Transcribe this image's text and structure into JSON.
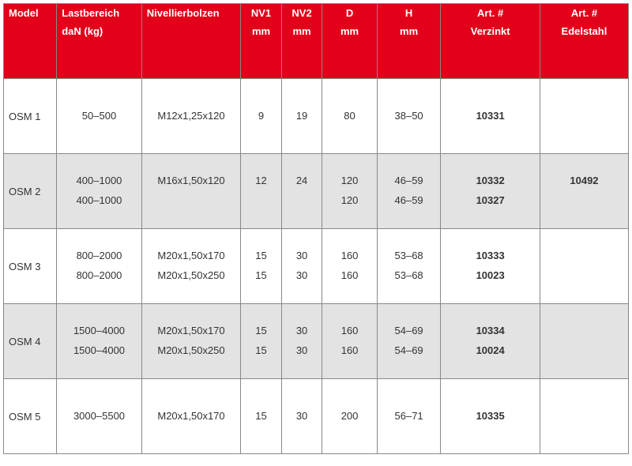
{
  "colors": {
    "header_bg": "#e2001a",
    "header_text": "#ffffff",
    "row_odd": "#ffffff",
    "row_even": "#e3e3e3",
    "border": "#888888",
    "text": "#333333"
  },
  "table": {
    "headers": {
      "model": {
        "line1": "Model",
        "line2": ""
      },
      "last": {
        "line1": "Lastbereich",
        "line2": "daN (kg)"
      },
      "niv": {
        "line1": "Nivellierbolzen",
        "line2": ""
      },
      "nv1": {
        "line1": "NV1",
        "line2": "mm"
      },
      "nv2": {
        "line1": "NV2",
        "line2": "mm"
      },
      "d": {
        "line1": "D",
        "line2": "mm"
      },
      "h": {
        "line1": "H",
        "line2": "mm"
      },
      "art_v": {
        "line1": "Art. #",
        "line2": "Verzinkt"
      },
      "art_e": {
        "line1": "Art. #",
        "line2": "Edelstahl"
      }
    },
    "rows": [
      {
        "model": "OSM 1",
        "last": [
          "50–500"
        ],
        "niv": [
          "M12x1,25x120"
        ],
        "nv1": [
          "9"
        ],
        "nv2": [
          "19"
        ],
        "d": [
          "80"
        ],
        "h": [
          "38–50"
        ],
        "art_v": [
          "10331"
        ],
        "art_e": [
          ""
        ]
      },
      {
        "model": "OSM 2",
        "last": [
          "400–1000",
          "400–1000"
        ],
        "niv": [
          "M16x1,50x120",
          ""
        ],
        "nv1": [
          "12",
          ""
        ],
        "nv2": [
          "24",
          ""
        ],
        "d": [
          "120",
          "120"
        ],
        "h": [
          "46–59",
          "46–59"
        ],
        "art_v": [
          "10332",
          "10327"
        ],
        "art_e": [
          "10492",
          ""
        ]
      },
      {
        "model": "OSM 3",
        "last": [
          "800–2000",
          "800–2000"
        ],
        "niv": [
          "M20x1,50x170",
          "M20x1,50x250"
        ],
        "nv1": [
          "15",
          "15"
        ],
        "nv2": [
          "30",
          "30"
        ],
        "d": [
          "160",
          "160"
        ],
        "h": [
          "53–68",
          "53–68"
        ],
        "art_v": [
          "10333",
          "10023"
        ],
        "art_e": [
          "",
          ""
        ]
      },
      {
        "model": "OSM 4",
        "last": [
          "1500–4000",
          "1500–4000"
        ],
        "niv": [
          "M20x1,50x170",
          "M20x1,50x250"
        ],
        "nv1": [
          "15",
          "15"
        ],
        "nv2": [
          "30",
          "30"
        ],
        "d": [
          "160",
          "160"
        ],
        "h": [
          "54–69",
          "54–69"
        ],
        "art_v": [
          "10334",
          "10024"
        ],
        "art_e": [
          "",
          ""
        ]
      },
      {
        "model": "OSM 5",
        "last": [
          "3000–5500"
        ],
        "niv": [
          "M20x1,50x170"
        ],
        "nv1": [
          "15"
        ],
        "nv2": [
          "30"
        ],
        "d": [
          "200"
        ],
        "h": [
          "56–71"
        ],
        "art_v": [
          "10335"
        ],
        "art_e": [
          ""
        ]
      }
    ]
  }
}
